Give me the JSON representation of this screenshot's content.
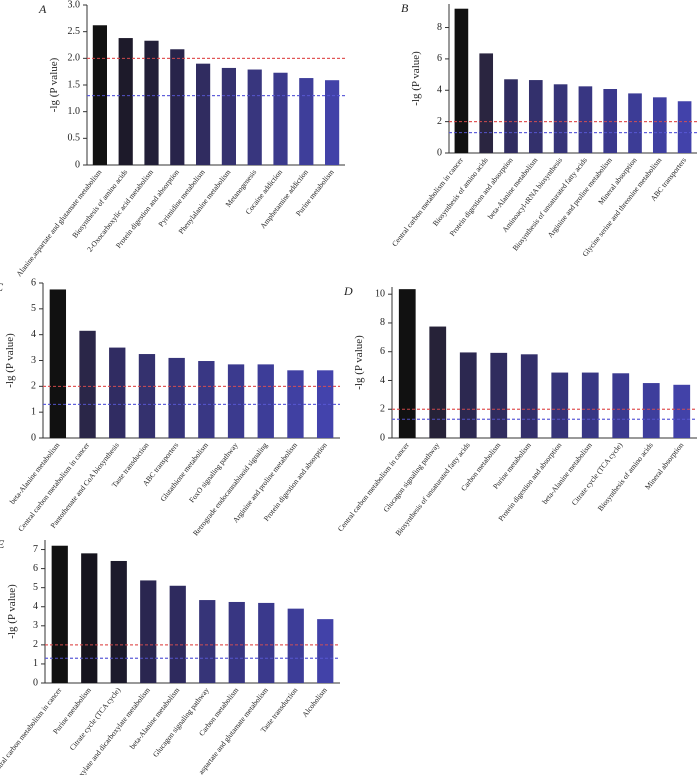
{
  "chart_data": [
    {
      "type": "bar",
      "label": "A",
      "ylabel": "-lg (P value)",
      "categories": [
        "Alanine,aspartate and glutamate metabolism",
        "Biosynthesis of amino acids",
        "2-Oxocarboxylic acid metabolism",
        "Protein digestion and absorption",
        "Pyrimidine metabolism",
        "Phenylalanine metabolism",
        "Metanogenesis",
        "Cocaine addiction",
        "Amphetamine addiction",
        "Purine metabolism"
      ],
      "values": [
        2.62,
        2.38,
        2.33,
        2.17,
        1.9,
        1.82,
        1.79,
        1.73,
        1.63,
        1.59
      ],
      "colors": [
        "#121212",
        "#1d1a2a",
        "#221f38",
        "#28244a",
        "#302c60",
        "#35326f",
        "#38367e",
        "#3b3a8c",
        "#3e3e9a",
        "#4242a8"
      ],
      "ylim": [
        0,
        3
      ],
      "yticks": [
        0,
        0.5,
        {
          "value": 1,
          "label": "1.0"
        },
        1.5,
        {
          "value": 2,
          "label": "2.0"
        },
        2.5,
        {
          "value": 3,
          "label": "3.0"
        }
      ],
      "thresholds": [
        {
          "value": 2,
          "color": "#e05050"
        },
        {
          "value": 1.3,
          "color": "#5a5ad8"
        }
      ]
    },
    {
      "type": "bar",
      "label": "B",
      "ylabel": "-lg (P value)",
      "categories": [
        "Central carbon metabolism in cancer",
        "Biosynthesis of amino acids",
        "Protein digestion and absorption",
        "beta-Alanine metabolism",
        "Aminoacyl-tRNA biosynthesis",
        "Biosynthesis of unsaturated fatty acids",
        "Arginine and proline metabolism",
        "Mineral absorption",
        "Glycine serine and threonine metabolism",
        "ABC transporters"
      ],
      "values": [
        9.2,
        6.35,
        4.7,
        4.65,
        4.38,
        4.25,
        4.08,
        3.8,
        3.55,
        3.3
      ],
      "colors": [
        "#111111",
        "#2a2540",
        "#302c60",
        "#33306c",
        "#363478",
        "#383682",
        "#3a388c",
        "#3c3c96",
        "#3f3fa0",
        "#4242aa"
      ],
      "ylim": [
        0,
        9.5
      ],
      "yticks": [
        0,
        2,
        4,
        6,
        8
      ],
      "thresholds": [
        {
          "value": 2,
          "color": "#e05050"
        },
        {
          "value": 1.3,
          "color": "#5a5ad8"
        }
      ]
    },
    {
      "type": "bar",
      "label": "C",
      "ylabel": "-lg (P value)",
      "categories": [
        "beta-Alanine metabolism",
        "Central carbon metabolism in cancer",
        "Pantothenate and CoA biosynthesis",
        "Taste transduction",
        "ABC transporters",
        "Glutathione metabolism",
        "FoxO signaling pathway",
        "Retrograde endocannabinoid signaling",
        "Arginine and proline metabolism",
        "Protein digestion and absorption"
      ],
      "values": [
        5.75,
        4.15,
        3.5,
        3.25,
        3.1,
        2.98,
        2.85,
        2.85,
        2.62,
        2.62
      ],
      "colors": [
        "#111111",
        "#2a2648",
        "#302c62",
        "#34316e",
        "#36347a",
        "#393784",
        "#3b3a8e",
        "#3d3d98",
        "#4040a2",
        "#4343ac"
      ],
      "ylim": [
        0,
        6
      ],
      "yticks": [
        0,
        1,
        2,
        3,
        4,
        5,
        6
      ],
      "thresholds": [
        {
          "value": 2,
          "color": "#e05050"
        },
        {
          "value": 1.3,
          "color": "#5a5ad8"
        }
      ]
    },
    {
      "type": "bar",
      "label": "D",
      "ylabel": "-lg (P value)",
      "categories": [
        "Central carbon metabolism in cancer",
        "Glucagon signaling pathway",
        "Biosynthesis of unsaturated fatty acids",
        "Carbon metabolism",
        "Purine metabolism",
        "Protein digestion and absorption",
        "beta-Alanine metabolism",
        "Citrate cycle (TCA cycle)",
        "Biosynthesis of amino acids",
        "Mineral absorption"
      ],
      "values": [
        10.35,
        7.75,
        5.95,
        5.92,
        5.82,
        4.55,
        4.55,
        4.5,
        3.82,
        3.7
      ],
      "colors": [
        "#111111",
        "#262238",
        "#2c2850",
        "#302c5e",
        "#332f6a",
        "#363478",
        "#383784",
        "#3b3a90",
        "#3e3e9c",
        "#4242a8"
      ],
      "ylim": [
        0,
        10.5
      ],
      "yticks": [
        0,
        2,
        4,
        6,
        8,
        10
      ],
      "thresholds": [
        {
          "value": 2,
          "color": "#e05050"
        },
        {
          "value": 1.3,
          "color": "#5a5ad8"
        }
      ]
    },
    {
      "type": "bar",
      "label": "E",
      "ylabel": "-lg (P value)",
      "categories": [
        "Central carbon metabolism in cancer",
        "Purine metabolism",
        "Citrate cycle (TCA cycle)",
        "Glyoxylate and dicarboxylate metabolism",
        "beta-Alanine metabolism",
        "Glucagon signaling pathway",
        "Carbon metabolism",
        "Alanine , aspartate and glutamate metabolism",
        "Taste transduction",
        "Alcoholism"
      ],
      "values": [
        7.2,
        6.8,
        6.4,
        5.38,
        5.1,
        4.35,
        4.25,
        4.2,
        3.9,
        3.35
      ],
      "colors": [
        "#111111",
        "#16141e",
        "#1c1a2c",
        "#2a2650",
        "#2e2a5e",
        "#363478",
        "#383682",
        "#3a398c",
        "#3d3d98",
        "#4242a8"
      ],
      "ylim": [
        0,
        7.5
      ],
      "yticks": [
        0,
        1,
        2,
        3,
        4,
        5,
        6,
        7
      ],
      "thresholds": [
        {
          "value": 2,
          "color": "#e05050"
        },
        {
          "value": 1.3,
          "color": "#5a5ad8"
        }
      ]
    }
  ]
}
